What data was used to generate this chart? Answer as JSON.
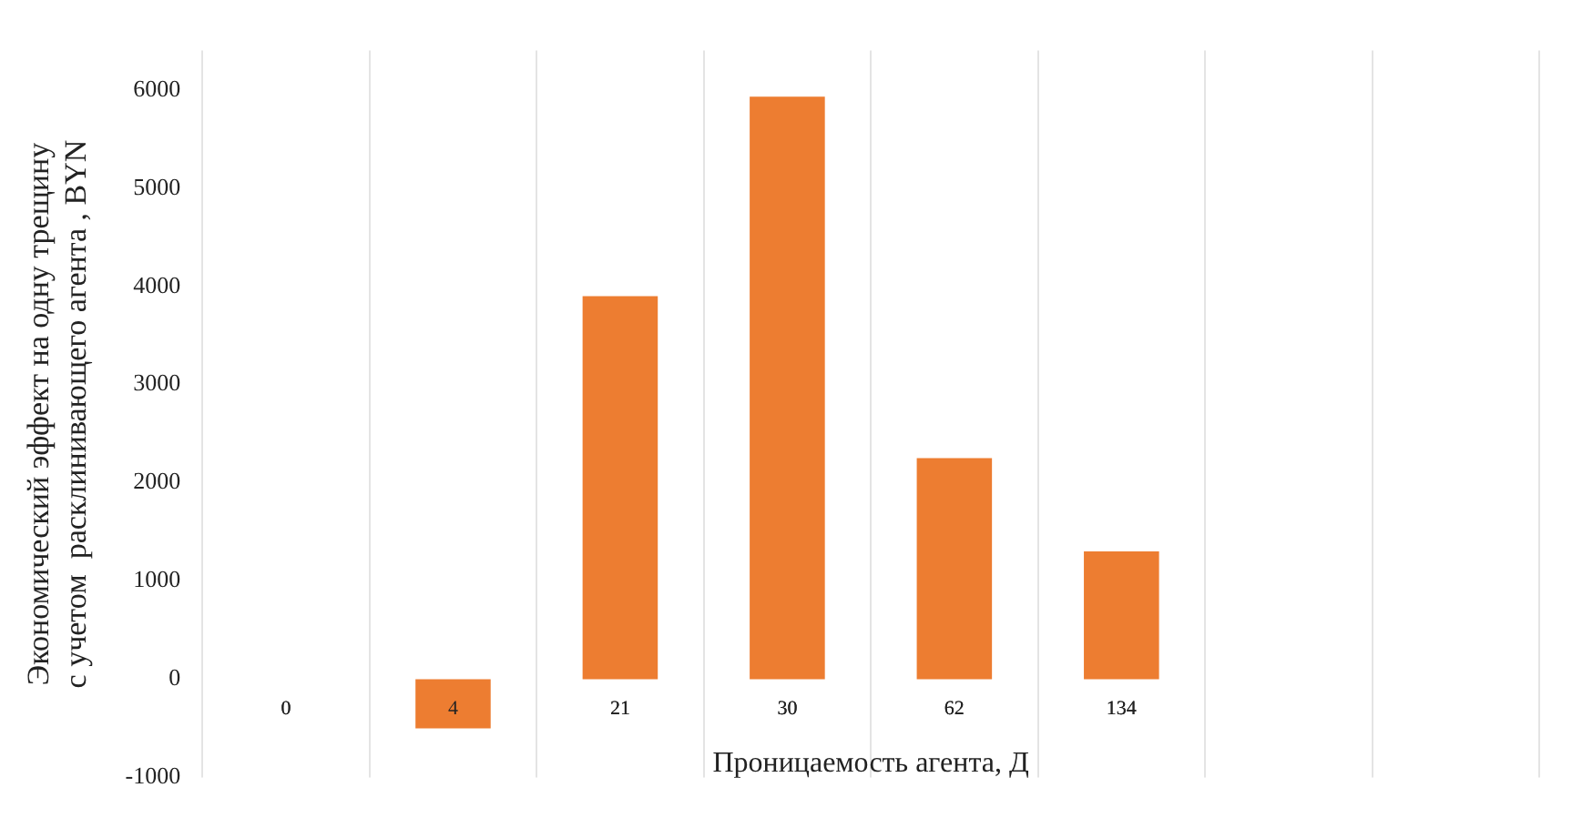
{
  "chart_data": {
    "type": "bar",
    "xlabel": "Проницаемость агента, Д",
    "ylabel": "Экономический эффект на одну трещину\nс учетом  расклинивающего агента , BYN",
    "categories": [
      "0",
      "4",
      "21",
      "30",
      "62",
      "134",
      null,
      null
    ],
    "values": [
      0,
      -500,
      3900,
      5930,
      2250,
      1300,
      null,
      null
    ],
    "color": "#ed7d31",
    "ylim": [
      -1000,
      6400
    ],
    "yticks": [
      -1000,
      0,
      1000,
      2000,
      3000,
      4000,
      5000,
      6000
    ],
    "grid": "x"
  }
}
